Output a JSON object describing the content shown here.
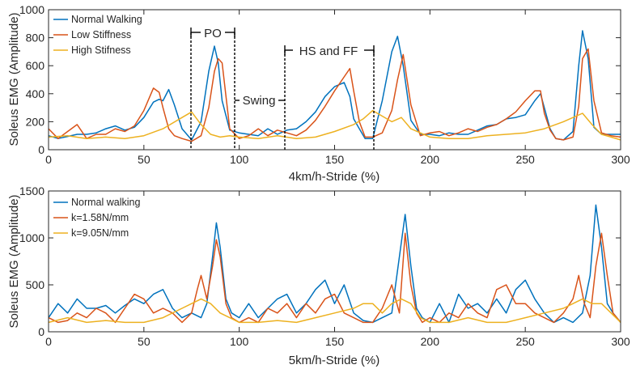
{
  "chart_data": [
    {
      "type": "line",
      "xlabel": "4km/h-Stride (%)",
      "ylabel": "Soleus EMG (Amplitude)",
      "xlim": [
        0,
        300
      ],
      "ylim": [
        0,
        1000
      ],
      "xticks": [
        "0",
        "50",
        "100",
        "150",
        "200",
        "250",
        "300"
      ],
      "yticks": [
        "0",
        "200",
        "400",
        "600",
        "800",
        "1000"
      ],
      "grid": false,
      "legend_position": "top-left",
      "series": [
        {
          "name": "Normal Walking",
          "color": "#0072BD",
          "x": [
            0,
            5,
            10,
            15,
            20,
            25,
            30,
            35,
            40,
            45,
            50,
            55,
            58,
            60,
            63,
            66,
            70,
            75,
            80,
            84,
            87,
            89,
            91,
            95,
            100,
            105,
            110,
            115,
            120,
            125,
            130,
            135,
            140,
            145,
            150,
            155,
            158,
            160,
            163,
            166,
            170,
            175,
            180,
            183,
            186,
            190,
            195,
            200,
            205,
            210,
            215,
            220,
            225,
            230,
            235,
            240,
            245,
            250,
            255,
            258,
            260,
            263,
            266,
            270,
            275,
            278,
            280,
            283,
            286,
            290,
            295,
            300
          ],
          "y": [
            100,
            80,
            95,
            110,
            110,
            120,
            150,
            170,
            140,
            160,
            230,
            340,
            360,
            350,
            430,
            320,
            150,
            70,
            200,
            560,
            740,
            620,
            350,
            140,
            120,
            110,
            100,
            150,
            110,
            140,
            150,
            200,
            270,
            380,
            450,
            480,
            380,
            220,
            150,
            80,
            80,
            350,
            700,
            810,
            600,
            210,
            110,
            110,
            100,
            120,
            110,
            110,
            140,
            170,
            180,
            220,
            230,
            250,
            350,
            400,
            300,
            150,
            80,
            70,
            130,
            600,
            850,
            650,
            160,
            110,
            110,
            110
          ]
        },
        {
          "name": "Low Stiffness",
          "color": "#D95319",
          "x": [
            0,
            5,
            10,
            15,
            20,
            25,
            30,
            35,
            40,
            45,
            50,
            55,
            58,
            60,
            63,
            66,
            70,
            75,
            80,
            84,
            87,
            89,
            91,
            95,
            100,
            105,
            110,
            115,
            120,
            125,
            130,
            135,
            140,
            145,
            150,
            155,
            158,
            160,
            163,
            166,
            170,
            175,
            180,
            183,
            186,
            190,
            195,
            200,
            205,
            210,
            215,
            220,
            225,
            230,
            235,
            240,
            245,
            250,
            255,
            258,
            260,
            263,
            266,
            270,
            275,
            278,
            280,
            283,
            286,
            290,
            295,
            300
          ],
          "y": [
            150,
            80,
            130,
            180,
            80,
            110,
            110,
            150,
            130,
            170,
            280,
            440,
            410,
            300,
            150,
            100,
            80,
            60,
            100,
            300,
            560,
            650,
            620,
            150,
            80,
            100,
            150,
            100,
            140,
            120,
            100,
            140,
            210,
            310,
            420,
            520,
            580,
            420,
            200,
            90,
            90,
            120,
            280,
            500,
            680,
            320,
            100,
            120,
            130,
            100,
            120,
            150,
            130,
            160,
            180,
            220,
            270,
            350,
            420,
            420,
            260,
            140,
            80,
            70,
            90,
            310,
            650,
            720,
            350,
            120,
            100,
            90
          ]
        },
        {
          "name": "High Stifness",
          "color": "#EDB120",
          "x": [
            0,
            10,
            20,
            30,
            40,
            50,
            60,
            70,
            75,
            80,
            85,
            90,
            95,
            100,
            110,
            120,
            130,
            140,
            150,
            160,
            165,
            170,
            175,
            180,
            185,
            190,
            195,
            200,
            210,
            220,
            230,
            240,
            250,
            260,
            270,
            275,
            280,
            285,
            290,
            295,
            300
          ],
          "y": [
            90,
            100,
            80,
            90,
            80,
            100,
            150,
            230,
            270,
            180,
            110,
            90,
            100,
            90,
            80,
            100,
            80,
            90,
            130,
            180,
            220,
            280,
            240,
            200,
            230,
            150,
            120,
            90,
            80,
            80,
            100,
            110,
            120,
            150,
            200,
            230,
            260,
            180,
            110,
            90,
            70
          ]
        }
      ],
      "annotations": [
        "PO",
        "Swing",
        "HS and FF"
      ]
    },
    {
      "type": "line",
      "xlabel": "5km/h-Stride (%)",
      "ylabel": "Soleus EMG (Amplitude)",
      "xlim": [
        0,
        300
      ],
      "ylim": [
        0,
        1500
      ],
      "xticks": [
        "0",
        "50",
        "100",
        "150",
        "200",
        "250",
        "300"
      ],
      "yticks": [
        "0",
        "500",
        "1000",
        "1500"
      ],
      "grid": false,
      "legend_position": "top-left",
      "series": [
        {
          "name": "Normal walking",
          "color": "#0072BD",
          "x": [
            0,
            5,
            10,
            15,
            20,
            25,
            30,
            35,
            40,
            45,
            50,
            55,
            60,
            65,
            70,
            75,
            80,
            83,
            86,
            88,
            90,
            93,
            96,
            100,
            105,
            110,
            115,
            120,
            125,
            130,
            135,
            140,
            145,
            150,
            155,
            160,
            165,
            170,
            175,
            180,
            184,
            187,
            190,
            193,
            196,
            200,
            205,
            210,
            215,
            220,
            225,
            230,
            235,
            240,
            245,
            250,
            255,
            260,
            265,
            270,
            275,
            280,
            284,
            287,
            290,
            293,
            296,
            300
          ],
          "y": [
            150,
            300,
            200,
            350,
            250,
            250,
            280,
            200,
            280,
            350,
            300,
            400,
            450,
            250,
            150,
            200,
            150,
            300,
            800,
            1160,
            900,
            350,
            200,
            150,
            300,
            150,
            250,
            350,
            400,
            200,
            300,
            450,
            550,
            300,
            500,
            200,
            120,
            100,
            150,
            200,
            800,
            1250,
            700,
            250,
            150,
            100,
            300,
            100,
            400,
            250,
            300,
            200,
            350,
            200,
            450,
            550,
            350,
            200,
            100,
            150,
            100,
            200,
            600,
            1350,
            900,
            300,
            200,
            100
          ]
        },
        {
          "name": "k=1.58N/mm",
          "color": "#D95319",
          "x": [
            0,
            5,
            10,
            15,
            20,
            25,
            30,
            35,
            40,
            45,
            50,
            55,
            60,
            65,
            70,
            75,
            78,
            80,
            83,
            86,
            88,
            90,
            93,
            96,
            100,
            105,
            110,
            115,
            120,
            125,
            130,
            135,
            140,
            145,
            150,
            155,
            160,
            165,
            170,
            175,
            180,
            184,
            187,
            190,
            193,
            196,
            200,
            205,
            210,
            215,
            220,
            225,
            230,
            235,
            240,
            245,
            250,
            255,
            260,
            265,
            270,
            275,
            278,
            281,
            284,
            287,
            290,
            293,
            296,
            300
          ],
          "y": [
            150,
            100,
            120,
            200,
            150,
            250,
            200,
            100,
            250,
            400,
            350,
            200,
            250,
            200,
            100,
            200,
            450,
            600,
            350,
            700,
            980,
            800,
            300,
            150,
            100,
            150,
            100,
            250,
            200,
            300,
            150,
            300,
            200,
            350,
            400,
            200,
            150,
            100,
            100,
            250,
            500,
            200,
            1050,
            500,
            200,
            100,
            150,
            100,
            200,
            150,
            300,
            200,
            150,
            450,
            500,
            300,
            300,
            200,
            150,
            100,
            200,
            350,
            600,
            300,
            150,
            700,
            1050,
            600,
            200,
            100
          ]
        },
        {
          "name": "k=9.05N/mm",
          "color": "#EDB120",
          "x": [
            0,
            10,
            20,
            30,
            40,
            50,
            60,
            70,
            75,
            80,
            85,
            90,
            95,
            100,
            110,
            120,
            130,
            140,
            150,
            160,
            165,
            170,
            175,
            180,
            185,
            190,
            195,
            200,
            210,
            220,
            230,
            240,
            250,
            260,
            270,
            275,
            280,
            285,
            290,
            295,
            300
          ],
          "y": [
            100,
            150,
            100,
            120,
            100,
            100,
            150,
            250,
            300,
            350,
            300,
            200,
            150,
            100,
            100,
            120,
            100,
            150,
            200,
            250,
            300,
            300,
            200,
            300,
            350,
            300,
            150,
            100,
            100,
            150,
            100,
            100,
            150,
            200,
            250,
            300,
            350,
            300,
            300,
            200,
            100
          ]
        }
      ]
    }
  ]
}
